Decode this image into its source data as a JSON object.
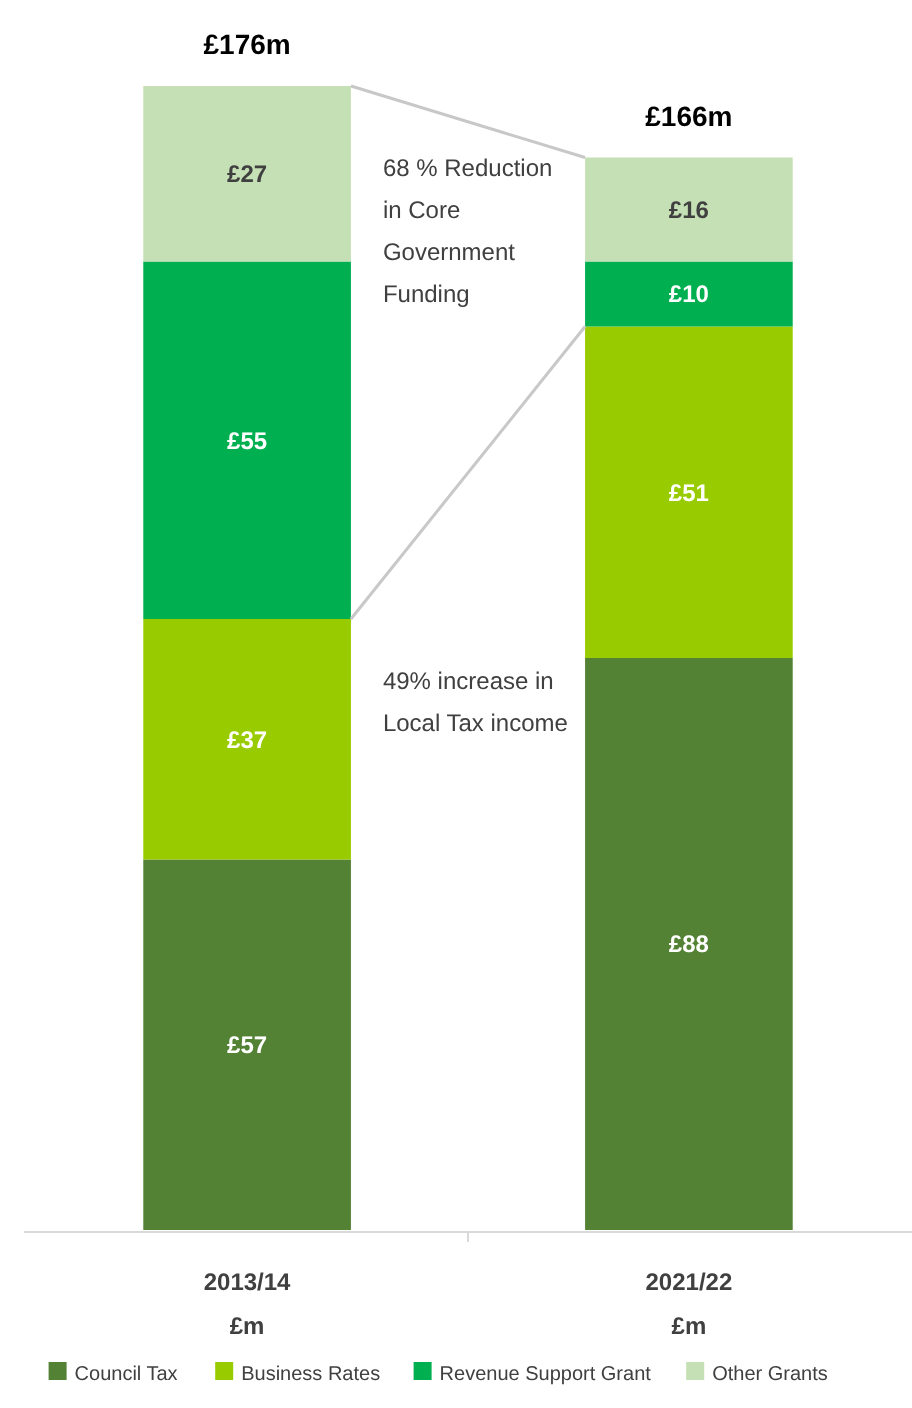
{
  "chart_data": {
    "type": "bar",
    "stacked": true,
    "categories": [
      "2013/14\n£m",
      "2021/22\n£m"
    ],
    "series": [
      {
        "name": "Council Tax",
        "color": "#548235",
        "values": [
          57,
          88
        ],
        "value_labels": [
          "£57",
          "£88"
        ]
      },
      {
        "name": "Business Rates",
        "color": "#99cc00",
        "values": [
          37,
          51
        ],
        "value_labels": [
          "£37",
          "£51"
        ]
      },
      {
        "name": "Revenue Support Grant",
        "color": "#00b050",
        "values": [
          55,
          10
        ],
        "value_labels": [
          "£55",
          "£10"
        ]
      },
      {
        "name": "Other Grants",
        "color": "#c5e0b4",
        "values": [
          27,
          16
        ],
        "value_labels": [
          "£27",
          "£16"
        ]
      }
    ],
    "totals": [
      "£176m",
      "£166m"
    ],
    "annotations": [
      "68 % Reduction in Core Government Funding",
      "49% increase in Local Tax income"
    ],
    "legend": "bottom"
  }
}
